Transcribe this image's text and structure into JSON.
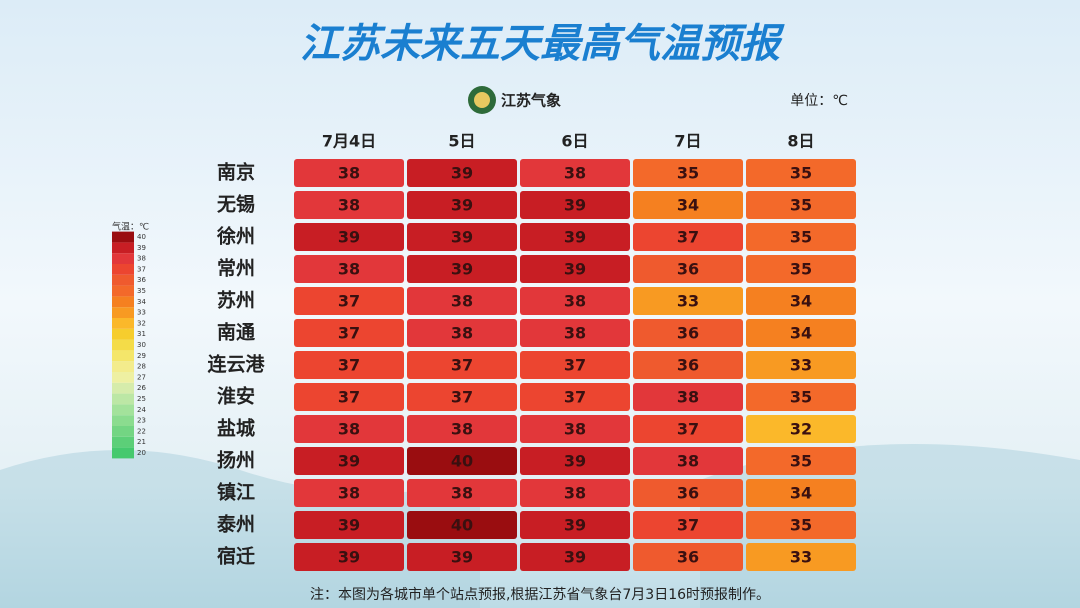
{
  "chart_data": {
    "type": "heatmap",
    "title": "江苏未来五天最高气温预报",
    "logo_text": "江苏气象",
    "unit_label": "单位：℃",
    "columns": [
      "7月4日",
      "5日",
      "6日",
      "7日",
      "8日"
    ],
    "rows": [
      "南京",
      "无锡",
      "徐州",
      "常州",
      "苏州",
      "南通",
      "连云港",
      "淮安",
      "盐城",
      "扬州",
      "镇江",
      "泰州",
      "宿迁"
    ],
    "values": [
      [
        38,
        39,
        38,
        35,
        35
      ],
      [
        38,
        39,
        39,
        34,
        35
      ],
      [
        39,
        39,
        39,
        37,
        35
      ],
      [
        38,
        39,
        39,
        36,
        35
      ],
      [
        37,
        38,
        38,
        33,
        34
      ],
      [
        37,
        38,
        38,
        36,
        34
      ],
      [
        37,
        37,
        37,
        36,
        33
      ],
      [
        37,
        37,
        37,
        38,
        35
      ],
      [
        38,
        38,
        38,
        37,
        32
      ],
      [
        39,
        40,
        39,
        38,
        35
      ],
      [
        38,
        38,
        38,
        36,
        34
      ],
      [
        39,
        40,
        39,
        37,
        35
      ],
      [
        39,
        39,
        39,
        36,
        33
      ]
    ],
    "colorbar_title": "气温：℃",
    "colorbar_ticks": [
      20,
      21,
      22,
      23,
      24,
      25,
      26,
      27,
      28,
      29,
      30,
      31,
      32,
      33,
      34,
      35,
      36,
      37,
      38,
      39,
      40
    ],
    "colorbar_colors": [
      "#45c96e",
      "#5ccf78",
      "#73d583",
      "#8bdc8f",
      "#a3e29b",
      "#bce7a5",
      "#d6ecab",
      "#eef0a2",
      "#f3ec8c",
      "#f4e66a",
      "#f4dc48",
      "#f6cd2d",
      "#fbb82a",
      "#f89a22",
      "#f58020",
      "#f3692a",
      "#ef5a2e",
      "#ec4530",
      "#e2373a",
      "#c81e24",
      "#9a0d10"
    ],
    "note": "注：本图为各城市单个站点预报,根据江苏省气象台7月3日16时预报制作。"
  }
}
